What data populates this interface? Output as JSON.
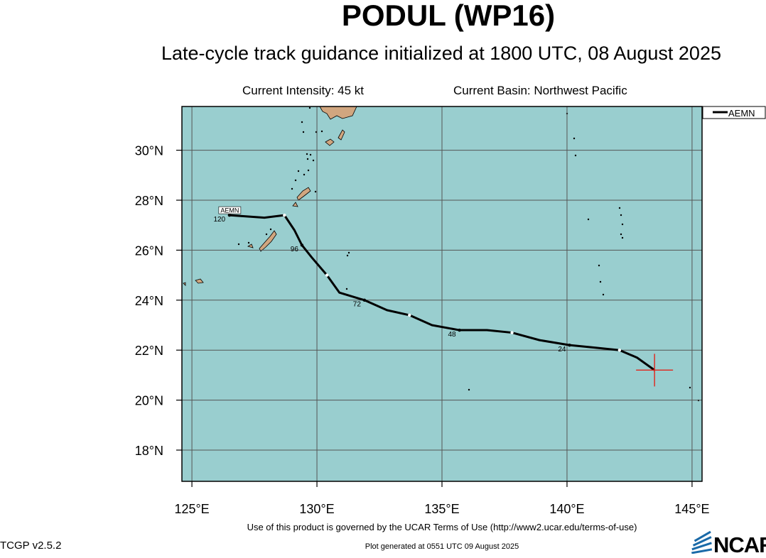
{
  "header": {
    "title": "PODUL (WP16)",
    "subtitle": "Late-cycle track guidance initialized at 1800 UTC, 08 August 2025",
    "intensity": "Current Intensity: 45 kt",
    "basin": "Current Basin: Northwest Pacific"
  },
  "footer": {
    "terms": "Use of this product is governed by the UCAR Terms of Use (http://www2.ucar.edu/terms-of-use)",
    "version": "TCGP v2.5.2",
    "generated": "Plot generated at 0551 UTC   09 August 2025",
    "logo_text": "NCAR"
  },
  "colors": {
    "ocean": "#99cecf",
    "land": "#d1a67f",
    "track": "#000000",
    "current_position_marker": "#e2231a",
    "grid": "#555555"
  },
  "map": {
    "projection": "lat-lon",
    "lon_range": [
      124.6,
      145.4
    ],
    "lat_range": [
      16.75,
      31.75
    ],
    "grid_lon": [
      125,
      130,
      135,
      140,
      145
    ],
    "grid_lat": [
      18,
      20,
      22,
      24,
      26,
      28,
      30
    ],
    "lon_tick_labels": [
      "125°E",
      "130°E",
      "135°E",
      "140°E",
      "145°E"
    ],
    "lat_tick_labels": [
      "18°N",
      "20°N",
      "22°N",
      "24°N",
      "26°N",
      "28°N",
      "30°N"
    ],
    "current_position": {
      "lon": 143.5,
      "lat": 21.2
    },
    "legend": [
      {
        "name": "AEMN"
      }
    ],
    "tracks": [
      {
        "name": "AEMN",
        "label_box": "AEMN",
        "points": [
          {
            "lon": 143.5,
            "lat": 21.2
          },
          {
            "lon": 142.8,
            "lat": 21.7
          },
          {
            "lon": 142.1,
            "lat": 22.0
          },
          {
            "lon": 141.1,
            "lat": 22.1
          },
          {
            "lon": 140.1,
            "lat": 22.2
          },
          {
            "lon": 138.9,
            "lat": 22.4
          },
          {
            "lon": 137.8,
            "lat": 22.7
          },
          {
            "lon": 136.8,
            "lat": 22.8
          },
          {
            "lon": 135.7,
            "lat": 22.8
          },
          {
            "lon": 134.6,
            "lat": 23.0
          },
          {
            "lon": 133.7,
            "lat": 23.4
          },
          {
            "lon": 132.8,
            "lat": 23.6
          },
          {
            "lon": 131.9,
            "lat": 24.0
          },
          {
            "lon": 130.9,
            "lat": 24.3
          },
          {
            "lon": 130.4,
            "lat": 25.0
          },
          {
            "lon": 129.8,
            "lat": 25.7
          },
          {
            "lon": 129.4,
            "lat": 26.2
          },
          {
            "lon": 129.1,
            "lat": 26.8
          },
          {
            "lon": 128.7,
            "lat": 27.4
          },
          {
            "lon": 127.9,
            "lat": 27.3
          },
          {
            "lon": 126.5,
            "lat": 27.4
          }
        ],
        "white_markers": [
          2,
          6,
          10,
          14,
          18
        ],
        "black_markers": [
          4,
          8,
          12,
          16,
          20
        ],
        "hour_labels": [
          {
            "text": "24",
            "lon": 139.8,
            "lat": 21.95
          },
          {
            "text": "48",
            "lon": 135.4,
            "lat": 22.55
          },
          {
            "text": "72",
            "lon": 131.6,
            "lat": 23.75
          },
          {
            "text": "96",
            "lon": 129.1,
            "lat": 25.95
          },
          {
            "text": "120",
            "lon": 126.1,
            "lat": 27.15
          }
        ]
      }
    ]
  }
}
